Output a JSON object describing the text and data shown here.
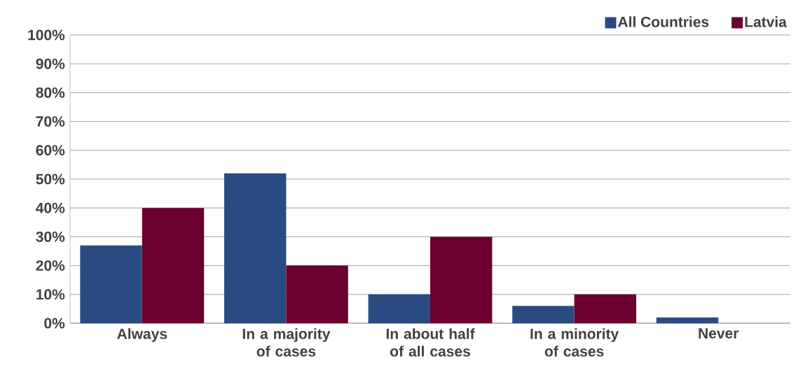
{
  "chart_data": {
    "type": "bar",
    "categories": [
      "Always",
      "In a majority of cases",
      "In about half of all cases",
      "In a minority of cases",
      "Never"
    ],
    "series": [
      {
        "name": "All Countries",
        "color": "#2a4b82",
        "values": [
          27,
          52,
          10,
          6,
          2
        ]
      },
      {
        "name": "Latvia",
        "color": "#6b0030",
        "values": [
          40,
          20,
          30,
          10,
          0
        ]
      }
    ],
    "ylim": [
      0,
      100
    ],
    "yticks": [
      {
        "value": 0,
        "label": "0%"
      },
      {
        "value": 10,
        "label": "10%"
      },
      {
        "value": 20,
        "label": "20%"
      },
      {
        "value": 30,
        "label": "30%"
      },
      {
        "value": 40,
        "label": "40%"
      },
      {
        "value": 50,
        "label": "50%"
      },
      {
        "value": 60,
        "label": "60%"
      },
      {
        "value": 70,
        "label": "70%"
      },
      {
        "value": 80,
        "label": "80%"
      },
      {
        "value": 90,
        "label": "90%"
      },
      {
        "value": 100,
        "label": "100%"
      }
    ],
    "grid": "y",
    "legend": "top right"
  }
}
